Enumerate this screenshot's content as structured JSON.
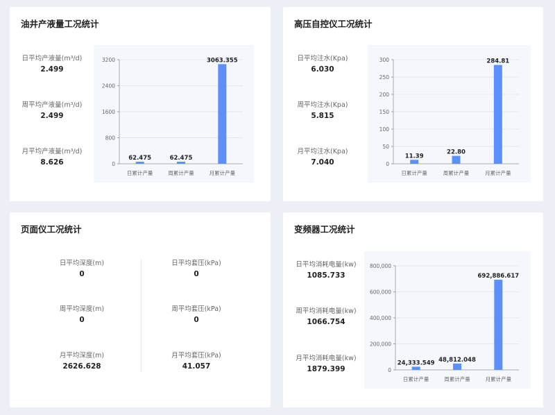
{
  "colors": {
    "bar": "#5b8ff9",
    "panel": "#f4f8fd",
    "background": "#eceff5"
  },
  "cards": [
    {
      "title": "油井产液量工况统计",
      "stats": [
        {
          "label": "日平均产液量(m³/d)",
          "value": "2.499"
        },
        {
          "label": "周平均产液量(m³/d)",
          "value": "2.499"
        },
        {
          "label": "月平均产液量(m³/d)",
          "value": "8.626"
        }
      ]
    },
    {
      "title": "高压自控仪工况统计",
      "stats": [
        {
          "label": "日平均注水(Kpa)",
          "value": "6.030"
        },
        {
          "label": "周平均注水(Kpa)",
          "value": "5.815"
        },
        {
          "label": "月平均注水(Kpa)",
          "value": "7.040"
        }
      ]
    },
    {
      "title": "页面仪工况统计",
      "left": [
        {
          "label": "日平均深度(m)",
          "value": "0"
        },
        {
          "label": "周平均深度(m)",
          "value": "0"
        },
        {
          "label": "月平均深度(m)",
          "value": "2626.628"
        }
      ],
      "right": [
        {
          "label": "日平均套压(kPa)",
          "value": "0"
        },
        {
          "label": "周平均套压(kPa)",
          "value": "0"
        },
        {
          "label": "月平均套压(kPa)",
          "value": "41.057"
        }
      ]
    },
    {
      "title": "变频器工况统计",
      "stats": [
        {
          "label": "日平均消耗电量(kw)",
          "value": "1085.733"
        },
        {
          "label": "周平均消耗电量(kw)",
          "value": "1066.754"
        },
        {
          "label": "月平均消耗电量(kw)",
          "value": "1879.399"
        }
      ]
    }
  ],
  "chart_data": [
    {
      "type": "bar",
      "categories": [
        "日累计产量",
        "周累计产量",
        "月累计产量"
      ],
      "values": [
        62.475,
        62.475,
        3063.355
      ],
      "value_labels": [
        "62.475",
        "62.475",
        "3063.355"
      ],
      "yticks": [
        "0",
        "800",
        "1600",
        "2400",
        "3200"
      ],
      "ylim": [
        0,
        3200
      ],
      "grid": true
    },
    {
      "type": "bar",
      "categories": [
        "日累计产量",
        "周累计产量",
        "月累计产量"
      ],
      "values": [
        11.39,
        22.8,
        284.81
      ],
      "value_labels": [
        "11.39",
        "22.80",
        "284.81"
      ],
      "yticks": [
        "0",
        "50",
        "100",
        "150",
        "200",
        "250",
        "300"
      ],
      "ylim": [
        0,
        300
      ],
      "grid": true
    },
    {
      "type": "bar",
      "categories": [
        "日累计产量",
        "周累计产量",
        "月累计产量"
      ],
      "values": [
        24333.549,
        48812.048,
        692886.617
      ],
      "value_labels": [
        "24,333.549",
        "48,812.048",
        "692,886.617"
      ],
      "yticks": [
        "0",
        "200,000",
        "400,000",
        "600,000",
        "800,000"
      ],
      "ylim": [
        0,
        800000
      ],
      "grid": true
    }
  ]
}
